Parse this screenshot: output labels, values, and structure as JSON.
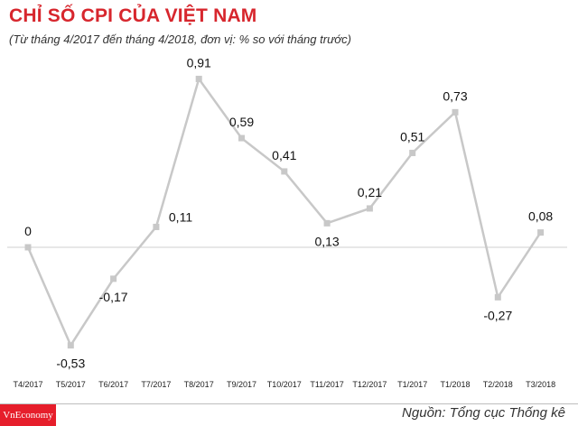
{
  "header": {
    "title": "CHỈ SỐ CPI CỦA VIỆT NAM",
    "subtitle": "(Từ tháng 4/2017 đến tháng 4/2018, đơn vị: % so với tháng trước)"
  },
  "footer": {
    "brand": "VnEconomy",
    "source": "Nguồn: Tổng cục Thống kê"
  },
  "colors": {
    "title": "#d7262d",
    "line": "#c8c8c8",
    "baseline": "#cfcfcf",
    "brand_bg": "#e61e2b"
  },
  "chart_data": {
    "type": "line",
    "categories": [
      "T4/2017",
      "T5/2017",
      "T6/2017",
      "T7/2017",
      "T8/2017",
      "T9/2017",
      "T10/2017",
      "T11/2017",
      "T12/2017",
      "T1/2017",
      "T1/2018",
      "T2/2018",
      "T3/2018"
    ],
    "values": [
      0,
      -0.53,
      -0.17,
      0.11,
      0.91,
      0.59,
      0.41,
      0.13,
      0.21,
      0.51,
      0.73,
      -0.27,
      0.08
    ],
    "labels": [
      "0",
      "-0,53",
      "-0,17",
      "0,11",
      "0,91",
      "0,59",
      "0,41",
      "0,13",
      "0,21",
      "0,51",
      "0,73",
      "-0,27",
      "0,08"
    ],
    "label_positions": [
      "above",
      "below",
      "below",
      "right",
      "above",
      "above",
      "above",
      "below",
      "above",
      "above",
      "above",
      "below",
      "above"
    ],
    "title": "CHỈ SỐ CPI CỦA VIỆT NAM",
    "ylim": [
      -0.6,
      1.0
    ],
    "grid": false,
    "zero_line": true
  }
}
